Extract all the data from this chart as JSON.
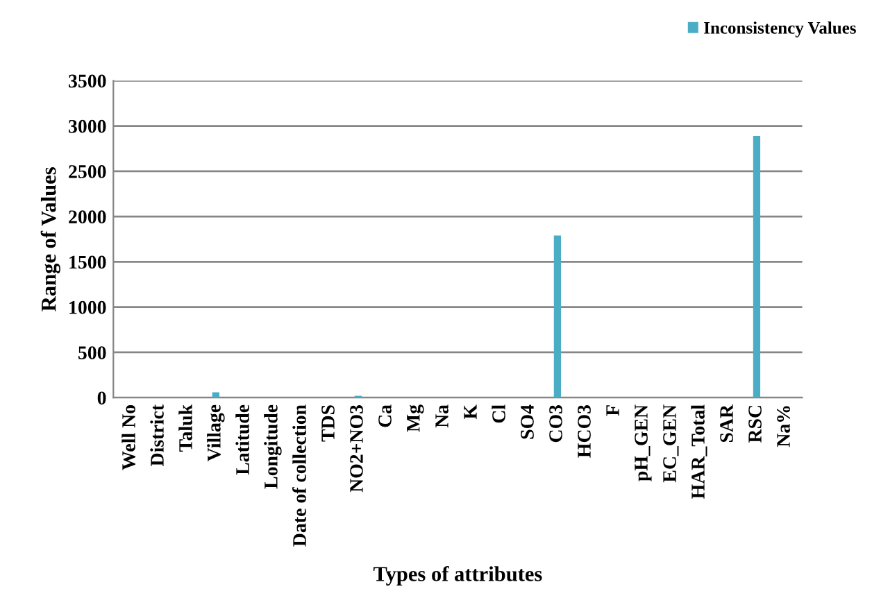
{
  "chart_data": {
    "type": "bar",
    "xlabel": "Types of attributes",
    "ylabel": "Range of Values",
    "categories": [
      "Well No",
      "District",
      "Taluk",
      "Village",
      "Latitude",
      "Longitude",
      "Date of collection",
      "TDS",
      "NO2+NO3",
      "Ca",
      "Mg",
      "Na",
      "K",
      "Cl",
      "SO4",
      "CO3",
      "HCO3",
      "F",
      "pH_GEN",
      "EC_GEN",
      "HAR_Total",
      "SAR",
      "RSC",
      "Na%"
    ],
    "series": [
      {
        "name": "Inconsistency Values",
        "color": "#4bacc6",
        "values": [
          0,
          0,
          0,
          60,
          0,
          0,
          0,
          0,
          20,
          0,
          0,
          0,
          0,
          0,
          0,
          1790,
          0,
          0,
          0,
          0,
          0,
          0,
          2890,
          0
        ]
      }
    ],
    "ylim": [
      0,
      3500
    ],
    "yticks": [
      0,
      500,
      1000,
      1500,
      2000,
      2500,
      3000,
      3500
    ],
    "grid": "y",
    "legend": "top right"
  }
}
